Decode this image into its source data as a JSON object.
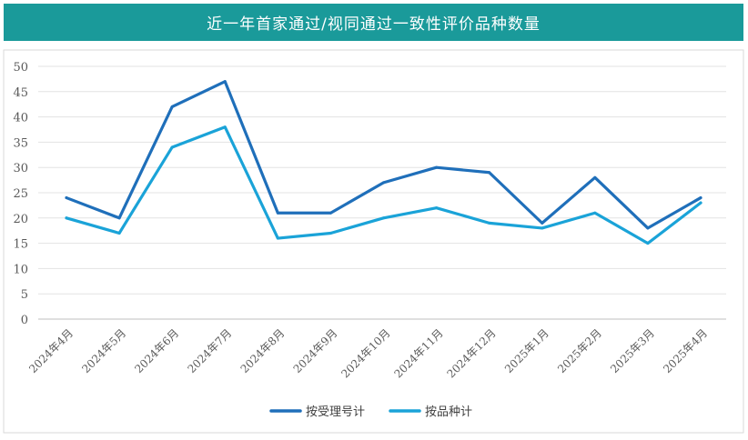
{
  "header": {
    "title": "近一年首家通过/视同通过一致性评价品种数量"
  },
  "chart_data": {
    "type": "line",
    "title": "近一年首家通过/视同通过一致性评价品种数量",
    "categories": [
      "2024年4月",
      "2024年5月",
      "2024年6月",
      "2024年7月",
      "2024年8月",
      "2024年9月",
      "2024年10月",
      "2024年11月",
      "2024年12月",
      "2025年1月",
      "2025年2月",
      "2025年3月",
      "2025年4月"
    ],
    "series": [
      {
        "name": "按受理号计",
        "color": "#1f6fba",
        "values": [
          24,
          20,
          42,
          47,
          21,
          21,
          27,
          30,
          29,
          19,
          28,
          18,
          24
        ]
      },
      {
        "name": "按品种计",
        "color": "#1aa3d8",
        "values": [
          20,
          17,
          34,
          38,
          16,
          17,
          20,
          22,
          19,
          18,
          21,
          15,
          23
        ]
      }
    ],
    "yticks": [
      "0",
      "5",
      "10",
      "15",
      "20",
      "25",
      "30",
      "35",
      "40",
      "45",
      "50"
    ],
    "ylim": [
      0,
      50
    ],
    "grid": true,
    "legend_position": "bottom-center"
  }
}
